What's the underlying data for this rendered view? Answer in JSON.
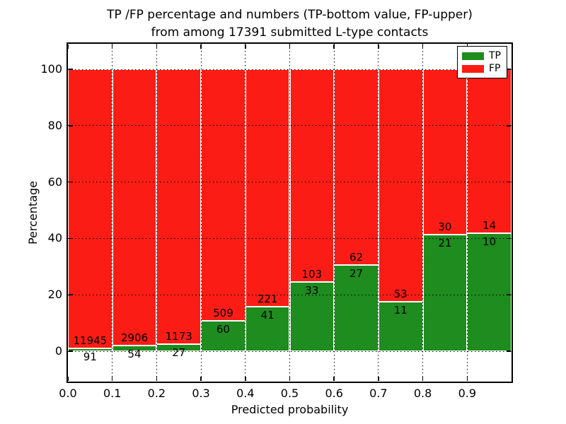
{
  "title": {
    "line1": "TP /FP percentage and numbers (TP-bottom value, FP-upper)",
    "line2": "from among 17391 submitted L-type contacts"
  },
  "x_axis": {
    "label": "Predicted probability",
    "ticks": [
      "0.0",
      "0.1",
      "0.2",
      "0.3",
      "0.4",
      "0.5",
      "0.6",
      "0.7",
      "0.8",
      "0.9"
    ]
  },
  "y_axis": {
    "label": "Percentage",
    "ticks": [
      "0",
      "20",
      "40",
      "60",
      "80",
      "100"
    ]
  },
  "legend": {
    "items": [
      {
        "label": "TP",
        "color": "#1e8c1e"
      },
      {
        "label": "FP",
        "color": "#fb1d15"
      }
    ]
  },
  "chart_data": {
    "type": "bar",
    "stacked": true,
    "normalized_to_percent": true,
    "title": "TP /FP percentage and numbers (TP-bottom value, FP-upper) from among 17391 submitted L-type contacts",
    "xlabel": "Predicted probability",
    "ylabel": "Percentage",
    "total_contacts": 17391,
    "bin_edges": [
      0.0,
      0.1,
      0.2,
      0.3,
      0.4,
      0.5,
      0.6,
      0.7,
      0.8,
      0.9,
      1.0
    ],
    "categories": [
      "0.0-0.1",
      "0.1-0.2",
      "0.2-0.3",
      "0.3-0.4",
      "0.4-0.5",
      "0.5-0.6",
      "0.6-0.7",
      "0.7-0.8",
      "0.8-0.9",
      "0.9-1.0"
    ],
    "series": [
      {
        "name": "TP",
        "color": "#1e8c1e",
        "counts": [
          91,
          54,
          27,
          60,
          41,
          33,
          27,
          11,
          21,
          10
        ],
        "percent": [
          0.76,
          1.82,
          2.25,
          10.54,
          15.65,
          24.26,
          30.34,
          17.19,
          41.18,
          41.67
        ]
      },
      {
        "name": "FP",
        "color": "#fb1d15",
        "counts": [
          11945,
          2906,
          1173,
          509,
          221,
          103,
          62,
          53,
          30,
          14
        ],
        "percent": [
          99.24,
          98.18,
          97.75,
          89.46,
          84.35,
          75.74,
          69.66,
          82.81,
          58.82,
          58.33
        ]
      }
    ],
    "xlim": [
      0.0,
      1.0
    ],
    "ylim": [
      -11,
      109
    ],
    "y_gridlines": [
      0,
      20,
      40,
      60,
      80,
      100
    ],
    "grid": true,
    "grid_style": "dotted",
    "legend_position": "upper right"
  }
}
